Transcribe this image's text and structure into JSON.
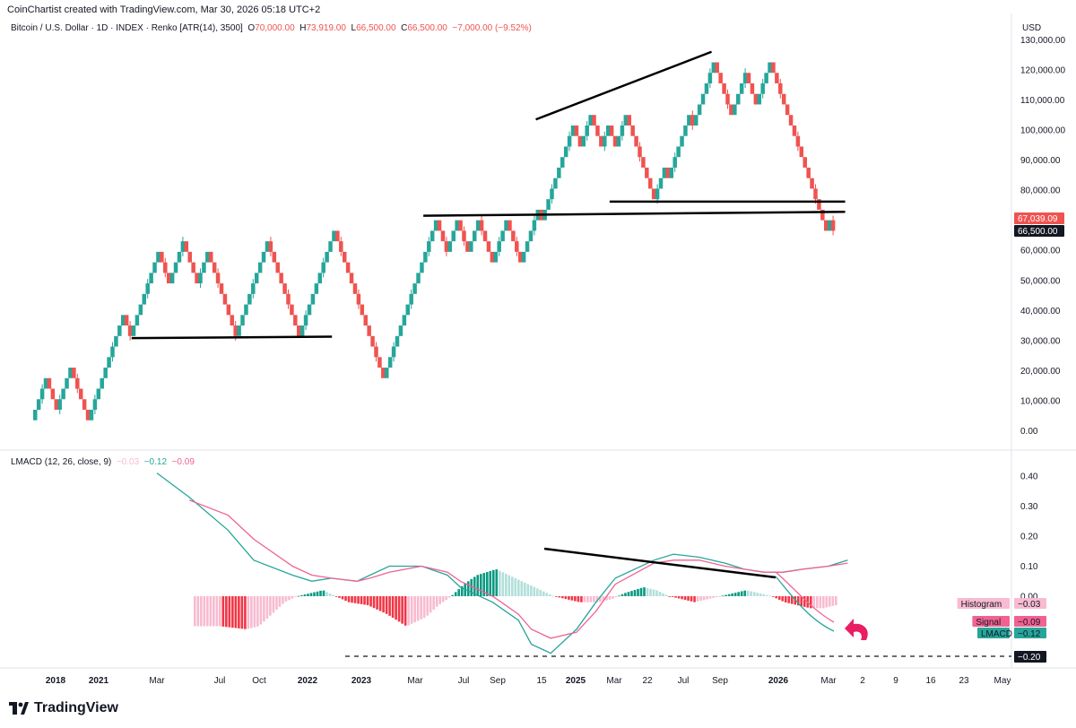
{
  "header": {
    "credit": "CoinChartist created with TradingView.com, Mar 30, 2026 05:18 UTC+2",
    "symbol": "Bitcoin / U.S. Dollar · 1D · INDEX · Renko [ATR(14), 3500]",
    "o_label": "O",
    "o_value": "70,000.00",
    "h_label": "H",
    "h_value": "73,919.00",
    "l_label": "L",
    "l_value": "66,500.00",
    "c_label": "C",
    "c_value": "66,500.00",
    "change": "−7,000.00 (−9.52%)",
    "currency": "USD"
  },
  "macd_header": {
    "label": "LMACD (12, 26, close, 9)",
    "v1": "−0.03",
    "v2": "−0.12",
    "v3": "−0.09"
  },
  "brand": {
    "name": "TradingView"
  },
  "colors": {
    "up": "#26a69a",
    "down": "#ef5350",
    "lmacd": "#26a69a",
    "signal": "#f06292",
    "hist_pos_strong": "#089981",
    "hist_pos_weak": "#b2dfdb",
    "hist_neg_strong": "#f23645",
    "hist_neg_weak": "#f8bbd0",
    "arrow": "#e91e63"
  },
  "chart_data": [
    {
      "type": "renko",
      "title": "Bitcoin / U.S. Dollar · 1D · INDEX · Renko [ATR(14), 3500]",
      "brick_size": 3500,
      "ylim": [
        -5000,
        130000
      ],
      "y_ticks": [
        0,
        10000,
        20000,
        30000,
        40000,
        50000,
        60000,
        70000,
        80000,
        90000,
        100000,
        110000,
        120000,
        130000
      ],
      "y_tick_labels": [
        "0.00",
        "10,000.00",
        "20,000.00",
        "30,000.00",
        "40,000.00",
        "50,000.00",
        "60,000.00",
        "70,000.00",
        "80,000.00",
        "90,000.00",
        "100,000.00",
        "110,000.00",
        "120,000.00",
        "130,000.00"
      ],
      "x_ticks": [
        "2018",
        "2021",
        "Mar",
        "Jul",
        "Oct",
        "2022",
        "2023",
        "Mar",
        "Jul",
        "Sep",
        "15",
        "2025",
        "Mar",
        "22",
        "Jul",
        "Sep",
        "2026",
        "Mar",
        "2",
        "9",
        "16",
        "23",
        "May"
      ],
      "path": [
        3500,
        17500,
        7000,
        21000,
        3500,
        38500,
        31500,
        59500,
        49000,
        63000,
        49000,
        59500,
        38500,
        31500,
        42000,
        63000,
        38500,
        31500,
        42000,
        66500,
        49000,
        31500,
        17500,
        21000,
        35000,
        70000,
        59500,
        70000,
        59500,
        70000,
        56000,
        70000,
        56000,
        73500,
        70000,
        101500,
        94500,
        105000,
        94500,
        101500,
        94500,
        105000,
        77000,
        87500,
        84000,
        105000,
        101500,
        122500,
        105000,
        119000,
        108500,
        122500,
        101500,
        80500,
        66500,
        70000,
        66500
      ],
      "price_labels": [
        {
          "value": 67039.09,
          "label": "67,039.09"
        },
        {
          "value": 66500,
          "label": "66,500.00"
        }
      ],
      "trendlines": [
        {
          "from": [
            28,
            30800
          ],
          "to": [
            85,
            31300
          ]
        },
        {
          "from": [
            111,
            71500
          ],
          "to": [
            231,
            72800
          ]
        },
        {
          "from": [
            164,
            76200
          ],
          "to": [
            231,
            76200
          ]
        },
        {
          "from": [
            143,
            103500
          ],
          "to": [
            193,
            126000
          ]
        }
      ]
    },
    {
      "type": "line",
      "title": "LMACD (12, 26, close, 9)",
      "ylim": [
        -0.22,
        0.43
      ],
      "y_ticks": [
        0.4,
        0.3,
        0.2,
        0.1,
        0.0
      ],
      "y_tick_labels": [
        "0.40",
        "0.30",
        "0.20",
        "0.10",
        "0.00"
      ],
      "series": [
        {
          "name": "LMACD",
          "x": [
            0,
            5,
            11,
            15,
            21,
            24,
            27,
            31,
            33,
            36,
            41,
            45,
            47,
            52,
            56,
            58,
            61,
            65,
            68,
            71,
            77,
            80,
            84,
            88,
            91,
            94,
            97,
            100,
            104,
            107
          ],
          "values": [
            0.41,
            0.33,
            0.22,
            0.12,
            0.07,
            0.05,
            0.06,
            0.05,
            0.07,
            0.1,
            0.1,
            0.07,
            0.03,
            -0.02,
            -0.08,
            -0.16,
            -0.19,
            -0.11,
            -0.02,
            0.06,
            0.12,
            0.14,
            0.13,
            0.11,
            0.09,
            0.08,
            0.08,
            0.09,
            0.1,
            0.12
          ]
        },
        {
          "name": "Signal",
          "x": [
            0,
            5,
            11,
            15,
            21,
            24,
            27,
            31,
            33,
            36,
            41,
            45,
            47,
            52,
            56,
            58,
            61,
            65,
            68,
            71,
            77,
            80,
            84,
            88,
            91,
            94,
            97,
            100,
            104,
            107
          ],
          "values": [
            null,
            0.32,
            0.27,
            0.19,
            0.1,
            0.07,
            0.06,
            0.05,
            0.06,
            0.08,
            0.1,
            0.08,
            0.05,
            0.0,
            -0.06,
            -0.11,
            -0.14,
            -0.12,
            -0.05,
            0.04,
            0.11,
            0.12,
            0.12,
            0.1,
            0.09,
            0.08,
            0.08,
            0.09,
            0.1,
            0.11
          ]
        }
      ],
      "histogram_value": -0.03,
      "signal_value": -0.09,
      "lmacd_value": -0.12,
      "dashed_level": -0.2,
      "dashed_level_label": "−0.20",
      "badges": [
        {
          "name": "Histogram",
          "value_label": "−0.03",
          "value": -0.03
        },
        {
          "name": "Signal",
          "value_label": "−0.09",
          "value": -0.09
        },
        {
          "name": "LMACD",
          "value_label": "−0.12",
          "value": -0.12
        }
      ]
    }
  ]
}
